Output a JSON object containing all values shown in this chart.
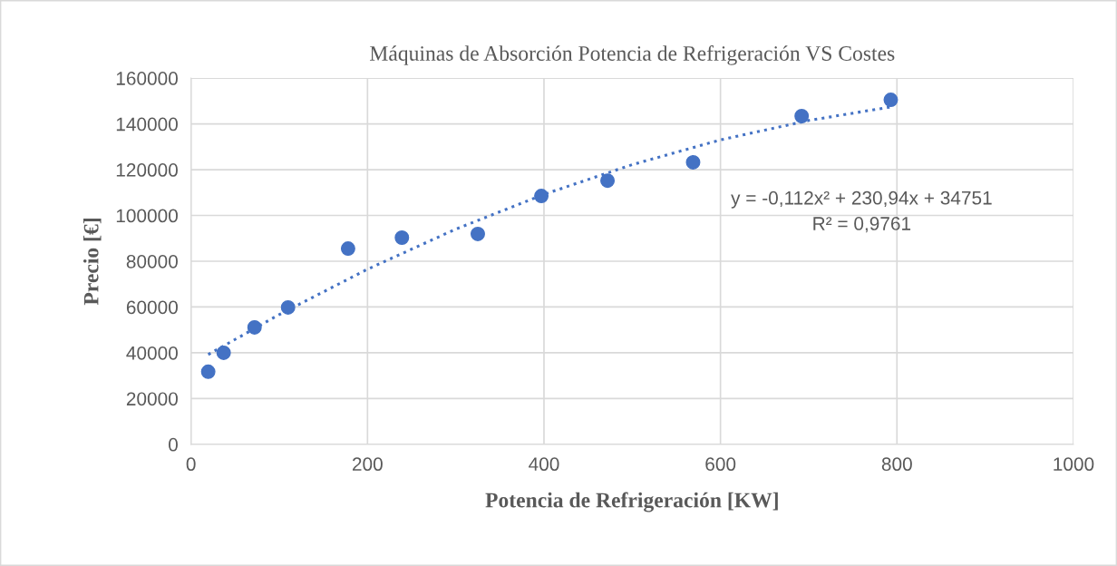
{
  "chart_data": {
    "type": "scatter",
    "title": "Máquinas de Absorción Potencia de Refrigeración VS Costes",
    "xlabel": "Potencia de Refrigeración [KW]",
    "ylabel": "Precio [€]",
    "series": [
      {
        "color": "#4472c4",
        "marker": "circle",
        "x": [
          19.5,
          37,
          72,
          110,
          178,
          239,
          325,
          397,
          472,
          569,
          692,
          793
        ],
        "values": [
          31700,
          40000,
          51100,
          59800,
          85500,
          90300,
          91900,
          108500,
          115200,
          123200,
          143400,
          150500
        ]
      },
      {
        "type": "line",
        "color": "#4472c4",
        "line_style": "dotted",
        "x": [
          19.5,
          100,
          200,
          300,
          400,
          500,
          600,
          700,
          793
        ],
        "values": [
          39200,
          56700,
          76500,
          94000,
          109200,
          122200,
          133000,
          141500,
          147400
        ]
      }
    ],
    "xlim": [
      0,
      1000
    ],
    "xticks": [
      0,
      200,
      400,
      600,
      800,
      1000
    ],
    "ylim": [
      0,
      160000
    ],
    "yticks": [
      0,
      20000,
      40000,
      60000,
      80000,
      100000,
      120000,
      140000,
      160000
    ],
    "grid": true,
    "legend": false,
    "annotations": [
      "y = -0,112x² + 230,94x + 34751",
      "R² = 0,9761"
    ]
  }
}
